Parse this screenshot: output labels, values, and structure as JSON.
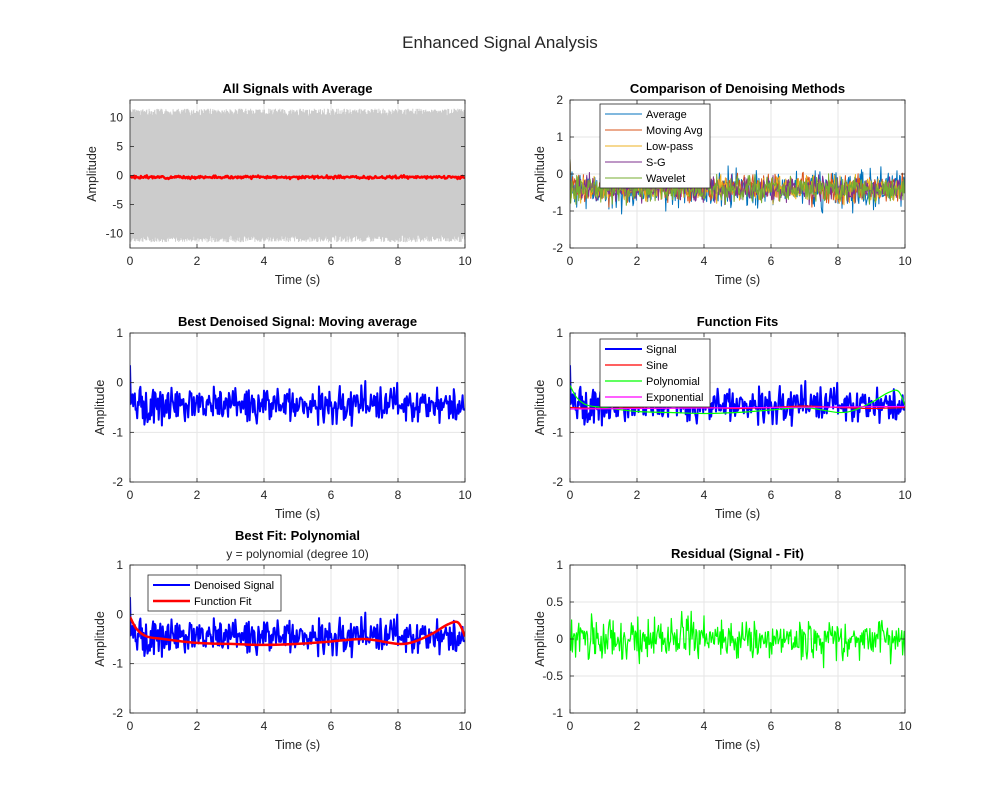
{
  "figure": {
    "title": "Enhanced Signal Analysis"
  },
  "colors": {
    "gray": "#cccccc",
    "red": "#ff0000",
    "blue": "#0000ff",
    "green": "#00ff00",
    "magenta": "#ff00ff",
    "avg": "#0072bd",
    "mavg": "#d95319",
    "lowpass": "#edb120",
    "sg": "#7e2f8e",
    "wavelet": "#77ac30"
  },
  "chart_data": [
    {
      "id": "all-signals",
      "type": "line",
      "title": "All Signals with Average",
      "subtitle": "",
      "xlabel": "Time (s)",
      "ylabel": "Amplitude",
      "xlim": [
        0,
        10
      ],
      "ylim": [
        -12.5,
        13
      ],
      "xticks": [
        0,
        2,
        4,
        6,
        8,
        10
      ],
      "yticks": [
        -10,
        -5,
        0,
        5,
        10
      ],
      "grid": true,
      "legend": null,
      "series": [
        {
          "style": "band",
          "lo": -11.5,
          "hi": 11.5,
          "color": "gray"
        },
        {
          "style": "noise",
          "mean": -0.3,
          "amp": 0.35,
          "n": 400,
          "width": 2.5,
          "color": "red",
          "seed": 3
        }
      ]
    },
    {
      "id": "denoising-methods",
      "type": "line",
      "title": "Comparison of Denoising Methods",
      "subtitle": "",
      "xlabel": "Time (s)",
      "ylabel": "Amplitude",
      "xlim": [
        0,
        10
      ],
      "ylim": [
        -2,
        2
      ],
      "xticks": [
        0,
        2,
        4,
        6,
        8,
        10
      ],
      "yticks": [
        -2,
        -1,
        0,
        1,
        2
      ],
      "grid": true,
      "legend": {
        "position": "top-left",
        "entries": [
          "Average",
          "Moving Avg",
          "Low-pass",
          "S-G",
          "Wavelet"
        ]
      },
      "series": [
        {
          "name": "Average",
          "style": "noise",
          "mean": -0.4,
          "amp": 0.75,
          "n": 500,
          "width": 1,
          "color": "avg",
          "seed": 11
        },
        {
          "name": "Moving Avg",
          "style": "noise",
          "mean": -0.4,
          "amp": 0.55,
          "n": 500,
          "width": 1,
          "color": "mavg",
          "seed": 12
        },
        {
          "name": "Low-pass",
          "style": "noise",
          "mean": -0.4,
          "amp": 0.5,
          "n": 500,
          "width": 1,
          "color": "lowpass",
          "seed": 13
        },
        {
          "name": "S-G",
          "style": "noise",
          "mean": -0.4,
          "amp": 0.5,
          "n": 500,
          "width": 1,
          "color": "sg",
          "seed": 14
        },
        {
          "name": "Wavelet",
          "style": "noise",
          "mean": -0.4,
          "amp": 0.5,
          "n": 500,
          "width": 1,
          "color": "wavelet",
          "seed": 15
        }
      ]
    },
    {
      "id": "best-denoised",
      "type": "line",
      "title": "Best Denoised Signal: Moving average",
      "subtitle": "",
      "xlabel": "Time (s)",
      "ylabel": "Amplitude",
      "xlim": [
        0,
        10
      ],
      "ylim": [
        -2,
        1
      ],
      "xticks": [
        0,
        2,
        4,
        6,
        8,
        10
      ],
      "yticks": [
        -2,
        -1,
        0,
        1
      ],
      "grid": true,
      "legend": null,
      "series": [
        {
          "style": "noise",
          "mean": -0.45,
          "amp": 0.5,
          "n": 420,
          "width": 2,
          "color": "blue",
          "seed": 21
        }
      ]
    },
    {
      "id": "function-fits",
      "type": "line",
      "title": "Function Fits",
      "subtitle": "",
      "xlabel": "Time (s)",
      "ylabel": "Amplitude",
      "xlim": [
        0,
        10
      ],
      "ylim": [
        -2,
        1
      ],
      "xticks": [
        0,
        2,
        4,
        6,
        8,
        10
      ],
      "yticks": [
        -2,
        -1,
        0,
        1
      ],
      "grid": true,
      "legend": {
        "position": "top-left",
        "entries": [
          "Signal",
          "Sine",
          "Polynomial",
          "Exponential"
        ]
      },
      "series": [
        {
          "name": "Signal",
          "style": "noise",
          "mean": -0.45,
          "amp": 0.5,
          "n": 420,
          "width": 2,
          "color": "blue",
          "seed": 21
        },
        {
          "name": "Sine",
          "style": "curve",
          "x": [
            0,
            1,
            2,
            3,
            4,
            5,
            6,
            7,
            8,
            9,
            10
          ],
          "y": [
            -0.5,
            -0.52,
            -0.5,
            -0.48,
            -0.5,
            -0.52,
            -0.5,
            -0.47,
            -0.5,
            -0.52,
            -0.5
          ],
          "width": 1.2,
          "color": "red"
        },
        {
          "name": "Polynomial",
          "style": "curve",
          "x": [
            0,
            0.2,
            0.5,
            1,
            2,
            3,
            4,
            5,
            6,
            7,
            8,
            8.5,
            9,
            9.5,
            9.8,
            10
          ],
          "y": [
            -0.05,
            -0.3,
            -0.45,
            -0.5,
            -0.58,
            -0.6,
            -0.62,
            -0.6,
            -0.55,
            -0.5,
            -0.6,
            -0.55,
            -0.4,
            -0.2,
            -0.17,
            -0.45
          ],
          "width": 1.2,
          "color": "green"
        },
        {
          "name": "Exponential",
          "style": "curve",
          "x": [
            0,
            10
          ],
          "y": [
            -0.53,
            -0.48
          ],
          "width": 1.2,
          "color": "magenta"
        }
      ]
    },
    {
      "id": "best-fit",
      "type": "line",
      "title": "Best Fit: Polynomial",
      "subtitle": "y = polynomial (degree 10)",
      "xlabel": "Time (s)",
      "ylabel": "Amplitude",
      "xlim": [
        0,
        10
      ],
      "ylim": [
        -2,
        1
      ],
      "xticks": [
        0,
        2,
        4,
        6,
        8,
        10
      ],
      "yticks": [
        -2,
        -1,
        0,
        1
      ],
      "grid": true,
      "legend": {
        "position": "top-left",
        "entries": [
          "Denoised Signal",
          "Function Fit"
        ]
      },
      "series": [
        {
          "name": "Denoised Signal",
          "style": "noise",
          "mean": -0.45,
          "amp": 0.5,
          "n": 420,
          "width": 2,
          "color": "blue",
          "seed": 21
        },
        {
          "name": "Function Fit",
          "style": "curve",
          "x": [
            0,
            0.2,
            0.5,
            1,
            2,
            3,
            4,
            5,
            6,
            7,
            8,
            8.5,
            9,
            9.5,
            9.8,
            10
          ],
          "y": [
            -0.05,
            -0.3,
            -0.45,
            -0.5,
            -0.58,
            -0.6,
            -0.62,
            -0.6,
            -0.55,
            -0.5,
            -0.6,
            -0.55,
            -0.4,
            -0.2,
            -0.17,
            -0.45
          ],
          "width": 2.5,
          "color": "red"
        }
      ]
    },
    {
      "id": "residual",
      "type": "line",
      "title": "Residual (Signal - Fit)",
      "subtitle": "",
      "xlabel": "Time (s)",
      "ylabel": "Amplitude",
      "xlim": [
        0,
        10
      ],
      "ylim": [
        -1,
        1
      ],
      "xticks": [
        0,
        2,
        4,
        6,
        8,
        10
      ],
      "yticks": [
        -1,
        -0.5,
        0,
        0.5,
        1
      ],
      "grid": true,
      "legend": null,
      "series": [
        {
          "style": "noise",
          "mean": 0,
          "amp": 0.42,
          "n": 420,
          "width": 1.2,
          "color": "green",
          "seed": 31
        }
      ]
    }
  ]
}
